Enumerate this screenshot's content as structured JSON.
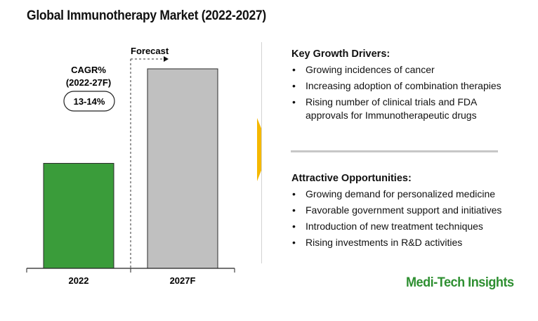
{
  "title": "Global Immunotherapy Market (2022-2027)",
  "chart_data": {
    "type": "bar",
    "categories": [
      "2022",
      "2027F"
    ],
    "values": [
      1,
      1.9
    ],
    "bar_colors": [
      "#3a9c3a",
      "#c0c0c0"
    ],
    "forecast_label": "Forecast",
    "cagr_label": "CAGR%",
    "cagr_period": "(2022-27F)",
    "cagr_value": "13-14%"
  },
  "drivers": {
    "heading": "Key Growth Drivers:",
    "items": [
      "Growing incidences of cancer",
      "Increasing adoption of combination therapies",
      "Rising number of clinical trials and FDA approvals for Immunotherapeutic drugs"
    ]
  },
  "opportunities": {
    "heading": "Attractive Opportunities:",
    "items": [
      "Growing demand for personalized medicine",
      "Favorable government support and initiatives",
      "Introduction of new treatment techniques",
      "Rising investments in R&D activities"
    ]
  },
  "brand": "Medi-Tech Insights",
  "colors": {
    "arrow": "#f5b800",
    "brand": "#2e8f31"
  }
}
